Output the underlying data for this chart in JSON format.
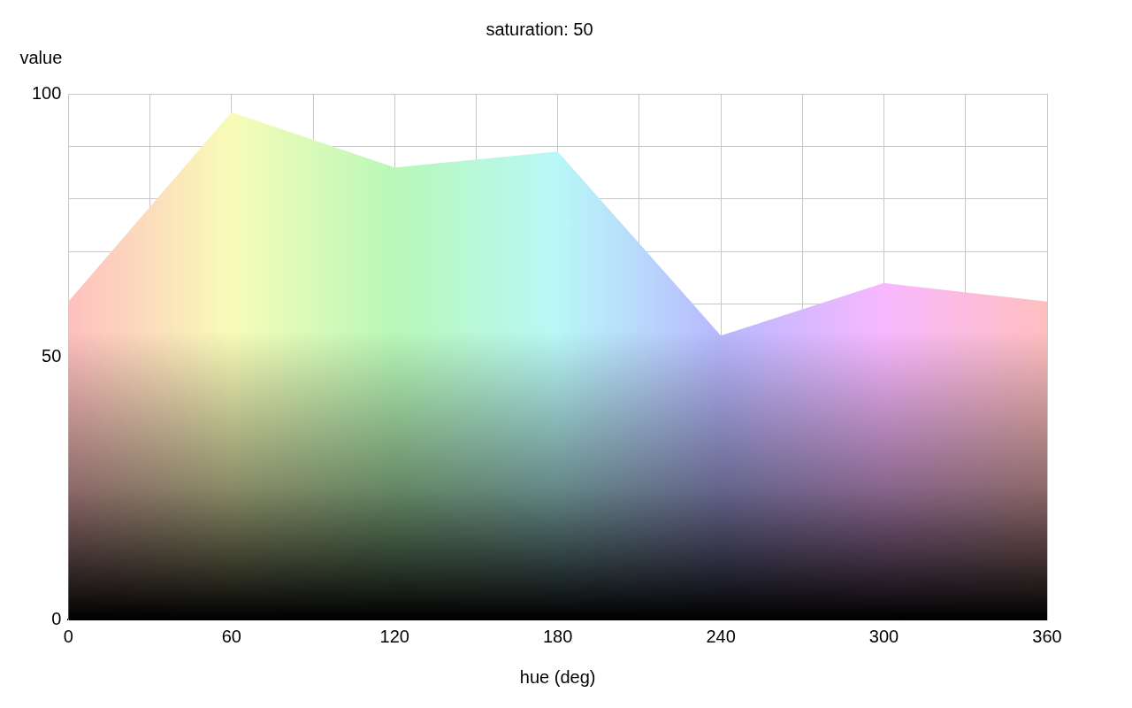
{
  "chart_data": {
    "type": "area",
    "title": "saturation: 50",
    "xlabel": "hue (deg)",
    "ylabel": "value",
    "x": [
      0,
      60,
      120,
      180,
      240,
      300,
      360
    ],
    "series": [
      {
        "values": [
          60.5,
          96.5,
          86,
          89,
          54,
          64,
          60.5
        ]
      }
    ],
    "colors": [
      "#ffbfbf",
      "#f8fcb8",
      "#b8f8b8",
      "#b8f8f8",
      "#b8b8ff",
      "#f8b8ff",
      "#ffbfbf"
    ],
    "xlim": [
      0,
      360
    ],
    "xticks": [
      0,
      {
        "value": 30,
        "label": null
      },
      60,
      {
        "value": 90,
        "label": null
      },
      120,
      {
        "value": 150,
        "label": null
      },
      180,
      {
        "value": 210,
        "label": null
      },
      240,
      {
        "value": 270,
        "label": null
      },
      300,
      {
        "value": 330,
        "label": null
      },
      360
    ],
    "ylim": [
      0,
      100
    ],
    "yticks": [
      0,
      50,
      {
        "value": 60,
        "label": null
      },
      {
        "value": 70,
        "label": null
      },
      {
        "value": 80,
        "label": null
      },
      {
        "value": 90,
        "label": null
      },
      100
    ],
    "grid": true
  }
}
